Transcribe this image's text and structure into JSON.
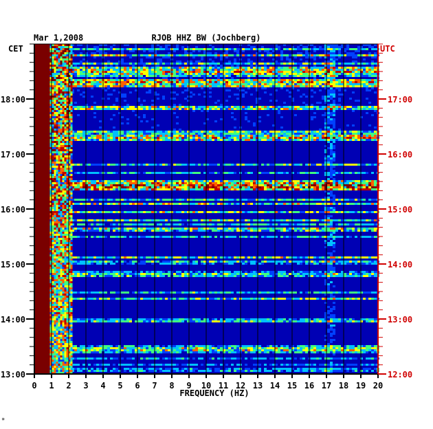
{
  "chart_data": {
    "type": "heatmap",
    "date": "Mar 1,2008",
    "title": "RJOB HHZ BW (Jochberg)",
    "left_zone": "CET",
    "right_zone": "UTC",
    "xlabel": "FREQUENCY (HZ)",
    "x_ticks": [
      "0",
      "1",
      "2",
      "3",
      "4",
      "5",
      "6",
      "7",
      "8",
      "9",
      "10",
      "11",
      "12",
      "13",
      "14",
      "15",
      "16",
      "17",
      "18",
      "19",
      "20"
    ],
    "xlim": [
      0,
      20
    ],
    "cet_ticks": [
      "13:00",
      "14:00",
      "15:00",
      "16:00",
      "17:00",
      "18:00"
    ],
    "utc_ticks": [
      "12:00",
      "13:00",
      "14:00",
      "15:00",
      "16:00",
      "17:00"
    ],
    "time_range_cet": [
      "13:00",
      "18:45"
    ],
    "colors": {
      "background": "#0000b4",
      "low_freq_band": "#7a0000",
      "axis_left": "#000000",
      "axis_right": "#d00000",
      "grid": "#000000"
    },
    "colormap": [
      "#0000b4",
      "#0040ff",
      "#00c0ff",
      "#40ff80",
      "#ffff00",
      "#ff6000",
      "#c00000",
      "#7a0000"
    ],
    "strong_events": [
      {
        "time_cet": "16:26",
        "freq_range": [
          1,
          20
        ],
        "level": "high"
      },
      {
        "time_cet": "17:19",
        "freq_range": [
          1,
          20
        ],
        "level": "medium"
      },
      {
        "time_cet": "18:31",
        "freq_range": [
          1,
          20
        ],
        "level": "medium"
      },
      {
        "time_cet": "18:20",
        "freq_range": [
          1,
          20
        ],
        "level": "medium"
      },
      {
        "time_cet": "13:28",
        "freq_range": [
          1,
          20
        ],
        "level": "medium"
      }
    ],
    "persistent_lines_hz": [
      17.3,
      16.9
    ]
  },
  "footer_mark": "*"
}
